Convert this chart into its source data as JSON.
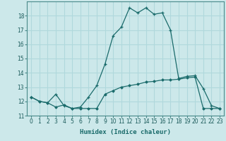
{
  "title": "",
  "xlabel": "Humidex (Indice chaleur)",
  "bg_color": "#cce8ea",
  "grid_color": "#b0d8dc",
  "line_color": "#1a6b6b",
  "line1_x": [
    0,
    1,
    2,
    3,
    4,
    5,
    6,
    7,
    8,
    9,
    10,
    11,
    12,
    13,
    14,
    15,
    16,
    17,
    18,
    19,
    20,
    21,
    22,
    23
  ],
  "line1_y": [
    12.3,
    12.0,
    11.9,
    12.5,
    11.7,
    11.5,
    11.6,
    12.3,
    13.1,
    14.6,
    16.6,
    17.2,
    18.55,
    18.2,
    18.55,
    18.1,
    18.2,
    17.0,
    13.6,
    13.75,
    13.8,
    12.9,
    11.7,
    11.5
  ],
  "line2_x": [
    0,
    1,
    2,
    3,
    4,
    5,
    6,
    7,
    8,
    9,
    10,
    11,
    12,
    13,
    14,
    15,
    16,
    17,
    18,
    19,
    20,
    21,
    22,
    23
  ],
  "line2_y": [
    12.3,
    12.0,
    11.9,
    11.6,
    11.75,
    11.5,
    11.5,
    11.5,
    11.5,
    12.5,
    12.75,
    13.0,
    13.1,
    13.2,
    13.35,
    13.4,
    13.5,
    13.5,
    13.55,
    13.65,
    13.7,
    11.5,
    11.5,
    11.5
  ],
  "ylim": [
    11.0,
    19.0
  ],
  "yticks": [
    11,
    12,
    13,
    14,
    15,
    16,
    17,
    18
  ],
  "xticks": [
    0,
    1,
    2,
    3,
    4,
    5,
    6,
    7,
    8,
    9,
    10,
    11,
    12,
    13,
    14,
    15,
    16,
    17,
    18,
    19,
    20,
    21,
    22,
    23
  ],
  "title_fontsize": 7,
  "axis_fontsize": 6.5,
  "tick_fontsize": 5.5
}
